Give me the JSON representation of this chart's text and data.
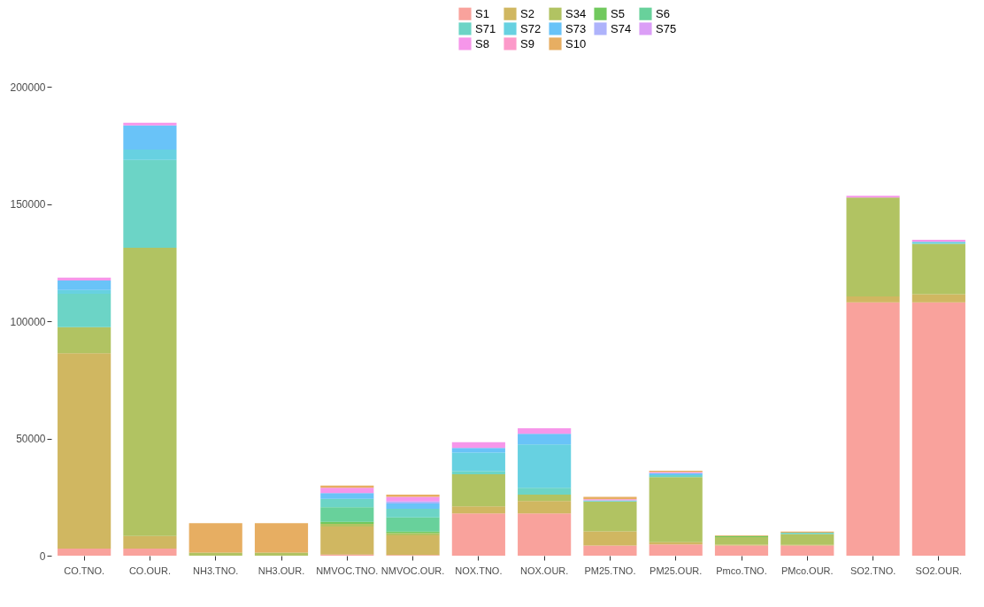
{
  "chart_data": {
    "type": "bar",
    "stacked": true,
    "legend": "top",
    "grid": false,
    "categories": [
      "CO.TNO.",
      "CO.OUR.",
      "NH3.TNO.",
      "NH3.OUR.",
      "NMVOC.TNO.",
      "NMVOC.OUR.",
      "NOX.TNO.",
      "NOX.OUR.",
      "PM25.TNO.",
      "PM25.OUR.",
      "Pmco.TNO.",
      "PMco.OUR.",
      "SO2.TNO.",
      "SO2.OUR."
    ],
    "ylim": [
      0,
      200000
    ],
    "yticks": [
      0,
      50000,
      100000,
      150000,
      200000
    ],
    "series": [
      {
        "name": "S1",
        "color": "#f8928b",
        "values": [
          3000,
          3000,
          null,
          null,
          500,
          300,
          18000,
          18000,
          4300,
          4800,
          4300,
          4300,
          108000,
          108000
        ]
      },
      {
        "name": "S2",
        "color": "#c8aa45",
        "values": [
          83300,
          5400,
          null,
          null,
          12000,
          8400,
          3000,
          5300,
          6100,
          1000,
          400,
          300,
          2600,
          3500
        ]
      },
      {
        "name": "S34",
        "color": "#a3b846",
        "values": [
          11200,
          122900,
          1300,
          1300,
          1100,
          900,
          13700,
          2700,
          12700,
          27700,
          3200,
          4600,
          42100,
          21500
        ]
      },
      {
        "name": "S5",
        "color": "#58c042",
        "values": [
          null,
          null,
          null,
          null,
          800,
          700,
          null,
          null,
          null,
          null,
          500,
          null,
          null,
          null
        ]
      },
      {
        "name": "S6",
        "color": "#4dc98a",
        "values": [
          null,
          null,
          null,
          null,
          6300,
          6000,
          null,
          null,
          null,
          null,
          null,
          null,
          null,
          null
        ]
      },
      {
        "name": "S71",
        "color": "#52ccbc",
        "values": [
          14200,
          37500,
          null,
          null,
          3500,
          3700,
          1300,
          3000,
          null,
          800,
          null,
          600,
          null,
          null
        ]
      },
      {
        "name": "S72",
        "color": "#4cc9dc",
        "values": [
          1600,
          4400,
          null,
          null,
          null,
          null,
          8000,
          18500,
          500,
          null,
          null,
          null,
          null,
          900
        ]
      },
      {
        "name": "S73",
        "color": "#4fb8f7",
        "values": [
          4100,
          10300,
          null,
          null,
          2500,
          2300,
          1900,
          4500,
          null,
          900,
          null,
          null,
          null,
          null
        ]
      },
      {
        "name": "S74",
        "color": "#a0a6fa",
        "values": [
          null,
          null,
          null,
          null,
          null,
          800,
          null,
          null,
          null,
          null,
          null,
          null,
          null,
          null
        ]
      },
      {
        "name": "S75",
        "color": "#d58df5",
        "values": [
          null,
          null,
          null,
          null,
          null,
          null,
          null,
          null,
          null,
          null,
          null,
          null,
          null,
          null
        ]
      },
      {
        "name": "S8",
        "color": "#f584e6",
        "values": [
          1200,
          1100,
          null,
          null,
          2300,
          2000,
          2500,
          2300,
          500,
          500,
          null,
          null,
          800,
          800
        ]
      },
      {
        "name": "S9",
        "color": "#fb87c0",
        "values": [
          null,
          null,
          null,
          null,
          null,
          null,
          null,
          null,
          null,
          null,
          null,
          null,
          null,
          null
        ]
      },
      {
        "name": "S10",
        "color": "#e3a046",
        "values": [
          null,
          null,
          12600,
          12600,
          900,
          900,
          null,
          null,
          1000,
          500,
          300,
          500,
          null,
          null
        ]
      }
    ]
  }
}
